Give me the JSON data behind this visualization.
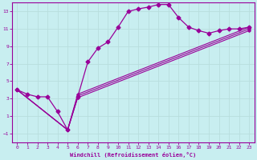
{
  "xlabel": "Windchill (Refroidissement éolien,°C)",
  "bg_color": "#c8eef0",
  "line_color": "#990099",
  "grid_color": "#b8dede",
  "xlim": [
    -0.5,
    23.5
  ],
  "ylim": [
    -2.0,
    14.0
  ],
  "xticks": [
    0,
    1,
    2,
    3,
    4,
    5,
    6,
    7,
    8,
    9,
    10,
    11,
    12,
    13,
    14,
    15,
    16,
    17,
    18,
    19,
    20,
    21,
    22,
    23
  ],
  "yticks": [
    -1,
    1,
    3,
    5,
    7,
    9,
    11,
    13
  ],
  "main_x": [
    0,
    1,
    2,
    3,
    4,
    5,
    6,
    7,
    8,
    9,
    10,
    11,
    12,
    13,
    14,
    15,
    16,
    17,
    18,
    19,
    20,
    21,
    22,
    23
  ],
  "main_y": [
    4.0,
    3.5,
    3.2,
    3.2,
    1.5,
    -0.6,
    3.2,
    7.2,
    8.8,
    9.5,
    11.2,
    13.0,
    13.3,
    13.5,
    13.8,
    13.8,
    12.3,
    11.2,
    10.8,
    10.5,
    10.8,
    11.0,
    11.0,
    11.2
  ],
  "linear_lines": [
    {
      "x": [
        0,
        5,
        6,
        23
      ],
      "y": [
        4.0,
        -0.6,
        3.5,
        11.2
      ]
    },
    {
      "x": [
        0,
        5,
        6,
        23
      ],
      "y": [
        4.0,
        -0.6,
        3.3,
        11.0
      ]
    },
    {
      "x": [
        0,
        5,
        6,
        23
      ],
      "y": [
        4.0,
        -0.6,
        3.1,
        10.8
      ]
    }
  ]
}
